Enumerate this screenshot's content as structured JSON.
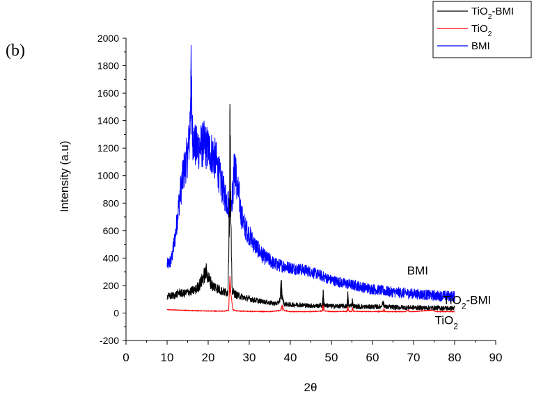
{
  "panel_label": "(b)",
  "chart_data": {
    "type": "line",
    "title": "",
    "xlabel": "2θ",
    "ylabel": "Intensity (a.u)",
    "xlim": [
      0,
      90
    ],
    "ylim": [
      -200,
      2000
    ],
    "x_ticks": [
      0,
      10,
      20,
      30,
      40,
      50,
      60,
      70,
      80,
      90
    ],
    "y_ticks": [
      -200,
      0,
      200,
      400,
      600,
      800,
      1000,
      1200,
      1400,
      1600,
      1800,
      2000
    ],
    "grid": false,
    "legend_position": "top-right",
    "series": [
      {
        "name": "TiO₂-BMI",
        "color": "#000000",
        "points": [
          [
            10,
            120
          ],
          [
            11,
            125
          ],
          [
            12,
            130
          ],
          [
            13,
            150
          ],
          [
            14,
            140
          ],
          [
            15,
            150
          ],
          [
            16,
            160
          ],
          [
            17,
            170
          ],
          [
            18,
            210
          ],
          [
            19,
            270
          ],
          [
            19.5,
            300
          ],
          [
            20,
            260
          ],
          [
            21,
            200
          ],
          [
            22,
            185
          ],
          [
            23,
            165
          ],
          [
            24,
            150
          ],
          [
            24.8,
            150
          ],
          [
            25.2,
            800
          ],
          [
            25.3,
            1520
          ],
          [
            25.5,
            700
          ],
          [
            25.8,
            160
          ],
          [
            26.5,
            140
          ],
          [
            27,
            130
          ],
          [
            28,
            120
          ],
          [
            29,
            110
          ],
          [
            30,
            105
          ],
          [
            31,
            95
          ],
          [
            32,
            90
          ],
          [
            33,
            85
          ],
          [
            34,
            80
          ],
          [
            35,
            75
          ],
          [
            36,
            70
          ],
          [
            37,
            70
          ],
          [
            37.5,
            100
          ],
          [
            37.8,
            230
          ],
          [
            38,
            120
          ],
          [
            38.5,
            65
          ],
          [
            40,
            60
          ],
          [
            42,
            60
          ],
          [
            44,
            55
          ],
          [
            46,
            52
          ],
          [
            47.8,
            55
          ],
          [
            48,
            170
          ],
          [
            48.2,
            60
          ],
          [
            50,
            50
          ],
          [
            52,
            50
          ],
          [
            53.8,
            50
          ],
          [
            54,
            140
          ],
          [
            54.2,
            50
          ],
          [
            55,
            60
          ],
          [
            55.1,
            100
          ],
          [
            55.3,
            50
          ],
          [
            57,
            45
          ],
          [
            60,
            45
          ],
          [
            62,
            45
          ],
          [
            62.7,
            80
          ],
          [
            63,
            45
          ],
          [
            65,
            42
          ],
          [
            68,
            40
          ],
          [
            70,
            40
          ],
          [
            72,
            38
          ],
          [
            75,
            38
          ],
          [
            78,
            35
          ],
          [
            80,
            35
          ]
        ]
      },
      {
        "name": "TiO₂",
        "color": "#ff0000",
        "points": [
          [
            10,
            25
          ],
          [
            12,
            22
          ],
          [
            14,
            20
          ],
          [
            16,
            18
          ],
          [
            18,
            16
          ],
          [
            20,
            15
          ],
          [
            22,
            14
          ],
          [
            24,
            14
          ],
          [
            25,
            20
          ],
          [
            25.2,
            200
          ],
          [
            25.3,
            270
          ],
          [
            25.5,
            150
          ],
          [
            26,
            25
          ],
          [
            27,
            15
          ],
          [
            30,
            12
          ],
          [
            35,
            10
          ],
          [
            37.6,
            18
          ],
          [
            38,
            55
          ],
          [
            38.5,
            18
          ],
          [
            40,
            10
          ],
          [
            45,
            10
          ],
          [
            47.8,
            15
          ],
          [
            48,
            80
          ],
          [
            48.3,
            15
          ],
          [
            50,
            10
          ],
          [
            53.8,
            12
          ],
          [
            54,
            45
          ],
          [
            54.3,
            12
          ],
          [
            55,
            12
          ],
          [
            55.1,
            40
          ],
          [
            55.4,
            12
          ],
          [
            60,
            10
          ],
          [
            62.6,
            12
          ],
          [
            62.8,
            35
          ],
          [
            63,
            10
          ],
          [
            68,
            10
          ],
          [
            68.8,
            22
          ],
          [
            69,
            10
          ],
          [
            70,
            10
          ],
          [
            75,
            22
          ],
          [
            75.3,
            10
          ],
          [
            80,
            10
          ]
        ]
      },
      {
        "name": "BMI",
        "color": "#0000ff",
        "points": [
          [
            10,
            350
          ],
          [
            11,
            380
          ],
          [
            12,
            560
          ],
          [
            13,
            830
          ],
          [
            14,
            1020
          ],
          [
            15,
            1150
          ],
          [
            15.5,
            1300
          ],
          [
            15.8,
            1770
          ],
          [
            16.2,
            1300
          ],
          [
            17,
            1200
          ],
          [
            18,
            1210
          ],
          [
            19,
            1230
          ],
          [
            20,
            1190
          ],
          [
            21,
            1160
          ],
          [
            22,
            1100
          ],
          [
            23,
            960
          ],
          [
            24,
            860
          ],
          [
            25,
            790
          ],
          [
            26,
            860
          ],
          [
            26.5,
            1150
          ],
          [
            27,
            900
          ],
          [
            27.5,
            860
          ],
          [
            28,
            720
          ],
          [
            29,
            620
          ],
          [
            30,
            570
          ],
          [
            31,
            510
          ],
          [
            32,
            470
          ],
          [
            33,
            430
          ],
          [
            34,
            400
          ],
          [
            35,
            385
          ],
          [
            36,
            360
          ],
          [
            37,
            350
          ],
          [
            38,
            345
          ],
          [
            40,
            330
          ],
          [
            42,
            320
          ],
          [
            44,
            310
          ],
          [
            46,
            290
          ],
          [
            48,
            265
          ],
          [
            50,
            240
          ],
          [
            52,
            225
          ],
          [
            54,
            210
          ],
          [
            56,
            200
          ],
          [
            58,
            185
          ],
          [
            60,
            175
          ],
          [
            62,
            165
          ],
          [
            64,
            155
          ],
          [
            66,
            150
          ],
          [
            68,
            145
          ],
          [
            70,
            140
          ],
          [
            72,
            135
          ],
          [
            74,
            130
          ],
          [
            76,
            125
          ],
          [
            78,
            125
          ],
          [
            80,
            120
          ]
        ]
      }
    ],
    "annotations": [
      {
        "text": "BMI",
        "x": 71,
        "y": 280
      },
      {
        "text": "TiO₂-BMI",
        "x": 83,
        "y": 65
      },
      {
        "text": "TiO₂",
        "x": 78,
        "y": -80
      }
    ]
  }
}
